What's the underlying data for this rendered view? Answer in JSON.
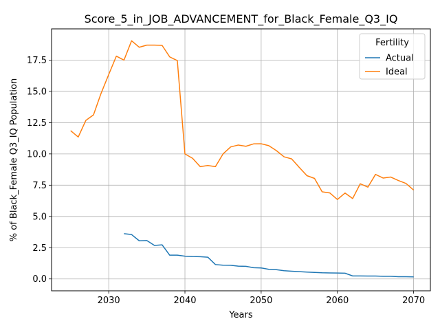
{
  "chart_data": {
    "type": "line",
    "title": "Score_5_in_JOB_ADVANCEMENT_for_Black_Female_Q3_IQ",
    "xlabel": "Years",
    "ylabel": "% of Black_Female Q3_IQ Population",
    "xlim": [
      2022.5,
      2072.2
    ],
    "ylim": [
      -0.95,
      20.0
    ],
    "x_ticks": [
      2030,
      2040,
      2050,
      2060,
      2070
    ],
    "y_ticks": [
      0.0,
      2.5,
      5.0,
      7.5,
      10.0,
      12.5,
      15.0,
      17.5
    ],
    "x_tick_labels": [
      "2030",
      "2040",
      "2050",
      "2060",
      "2070"
    ],
    "y_tick_labels": [
      "0.0",
      "2.5",
      "5.0",
      "7.5",
      "10.0",
      "12.5",
      "15.0",
      "17.5"
    ],
    "grid": true,
    "legend": {
      "title": "Fertility",
      "placement": "top-right"
    },
    "series": [
      {
        "name": "Actual",
        "color": "#1f77b4",
        "x": [
          2032,
          2033,
          2034,
          2035,
          2036,
          2037,
          2038,
          2039,
          2040,
          2041,
          2042,
          2043,
          2044,
          2045,
          2046,
          2047,
          2048,
          2049,
          2050,
          2051,
          2052,
          2053,
          2054,
          2055,
          2056,
          2057,
          2058,
          2059,
          2060,
          2061,
          2062,
          2063,
          2064,
          2065,
          2066,
          2067,
          2068,
          2069,
          2070
        ],
        "values": [
          3.62,
          3.55,
          3.05,
          3.07,
          2.68,
          2.73,
          1.9,
          1.9,
          1.82,
          1.79,
          1.78,
          1.74,
          1.15,
          1.1,
          1.09,
          1.02,
          1.01,
          0.9,
          0.88,
          0.77,
          0.74,
          0.66,
          0.62,
          0.58,
          0.55,
          0.52,
          0.49,
          0.48,
          0.47,
          0.46,
          0.24,
          0.24,
          0.23,
          0.23,
          0.21,
          0.21,
          0.18,
          0.18,
          0.16
        ]
      },
      {
        "name": "Ideal",
        "color": "#ff7f0e",
        "x": [
          2025,
          2026,
          2027,
          2028,
          2029,
          2030,
          2031,
          2032,
          2033,
          2034,
          2035,
          2036,
          2037,
          2038,
          2039,
          2040,
          2041,
          2042,
          2043,
          2044,
          2045,
          2046,
          2047,
          2048,
          2049,
          2050,
          2051,
          2052,
          2053,
          2054,
          2055,
          2056,
          2057,
          2058,
          2059,
          2060,
          2061,
          2062,
          2063,
          2064,
          2065,
          2066,
          2067,
          2068,
          2069,
          2070
        ],
        "values": [
          11.86,
          11.35,
          12.68,
          13.12,
          14.85,
          16.35,
          17.82,
          17.5,
          19.05,
          18.53,
          18.7,
          18.7,
          18.68,
          17.76,
          17.46,
          10.0,
          9.65,
          8.98,
          9.07,
          8.98,
          10.0,
          10.56,
          10.71,
          10.61,
          10.8,
          10.81,
          10.66,
          10.26,
          9.77,
          9.6,
          8.92,
          8.26,
          8.04,
          6.97,
          6.88,
          6.35,
          6.87,
          6.43,
          7.61,
          7.34,
          8.36,
          8.07,
          8.15,
          7.87,
          7.64,
          7.11
        ]
      }
    ]
  }
}
